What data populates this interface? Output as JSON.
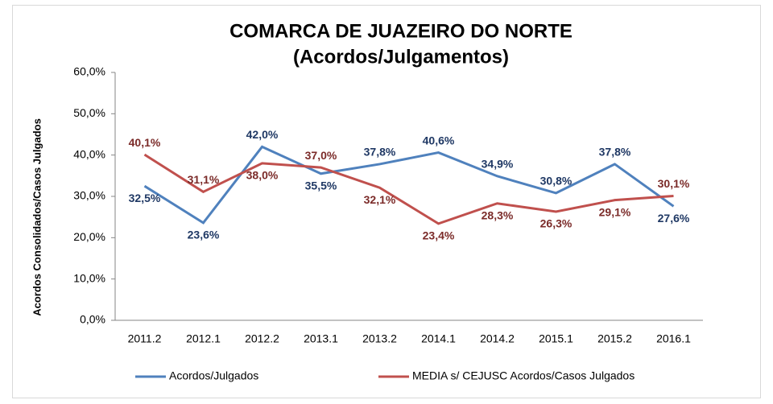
{
  "chart_data": {
    "type": "line",
    "title": [
      "COMARCA DE JUAZEIRO DO NORTE",
      "(Acordos/Julgamentos)"
    ],
    "y_label": "Acordos Consolidados/Casos Julgados",
    "categories": [
      "2011.2",
      "2012.1",
      "2012.2",
      "2013.1",
      "2013.2",
      "2014.1",
      "2014.2",
      "2015.1",
      "2015.2",
      "2016.1"
    ],
    "series": [
      {
        "name": "Acordos/Julgados",
        "color": "#4f81bd",
        "values": [
          32.5,
          23.6,
          42.0,
          35.5,
          37.8,
          40.6,
          34.9,
          30.8,
          37.8,
          27.6
        ],
        "value_labels": [
          "32,5%",
          "23,6%",
          "42,0%",
          "35,5%",
          "37,8%",
          "40,6%",
          "34,9%",
          "30,8%",
          "37,8%",
          "27,6%"
        ]
      },
      {
        "name": "MEDIA s/ CEJUSC Acordos/Casos Julgados",
        "color": "#c0504d",
        "values": [
          40.1,
          31.1,
          38.0,
          37.0,
          32.1,
          23.4,
          28.3,
          26.3,
          29.1,
          30.1
        ],
        "value_labels": [
          "40,1%",
          "31,1%",
          "38,0%",
          "37,0%",
          "32,1%",
          "23,4%",
          "28,3%",
          "26,3%",
          "29,1%",
          "30,1%"
        ]
      }
    ],
    "ylim": [
      0,
      60
    ],
    "yticks": [
      {
        "value": 0,
        "label": "0,0%"
      },
      {
        "value": 10,
        "label": "10,0%"
      },
      {
        "value": 20,
        "label": "20,0%"
      },
      {
        "value": 30,
        "label": "30,0%"
      },
      {
        "value": 40,
        "label": "40,0%"
      },
      {
        "value": 50,
        "label": "50,0%"
      },
      {
        "value": 60,
        "label": "60,0%"
      }
    ],
    "grid": false,
    "legend": "bottom"
  }
}
